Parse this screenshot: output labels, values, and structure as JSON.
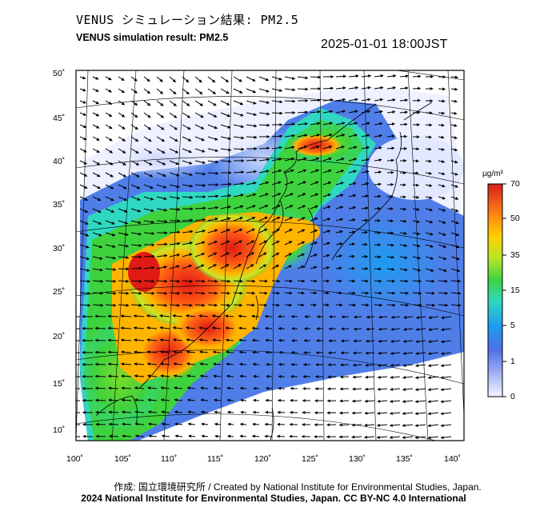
{
  "header": {
    "title_jp": "VENUS シミュレーション結果: PM2.5",
    "title_en": "VENUS simulation result: PM2.5",
    "timestamp": "2025-01-01 18:00JST"
  },
  "map": {
    "projection": "lambert-conformal",
    "lat_labels": [
      "50˚",
      "45˚",
      "40˚",
      "35˚",
      "30˚",
      "25˚",
      "20˚",
      "15˚",
      "10˚"
    ],
    "lon_labels": [
      "100˚",
      "105˚",
      "110˚",
      "115˚",
      "120˚",
      "125˚",
      "130˚",
      "135˚",
      "140˚"
    ],
    "field": "PM2.5 concentration with wind vectors"
  },
  "colorbar": {
    "unit": "µg/m³",
    "ticks": [
      "70",
      "50",
      "35",
      "15",
      "5",
      "1",
      "0"
    ],
    "colors": [
      "#e8ecff",
      "#5a78e6",
      "#1e9bf0",
      "#2fd8c0",
      "#3ed23e",
      "#c8e628",
      "#ffb400",
      "#ff5a14",
      "#d81e1e"
    ]
  },
  "credits": {
    "jp_line": "作成: 国立環境研究所 / Created by National Institute for Environmental Studies, Japan.",
    "copyright": "2024 National Institute for Environmental Studies, Japan. CC BY-NC 4.0 International"
  }
}
